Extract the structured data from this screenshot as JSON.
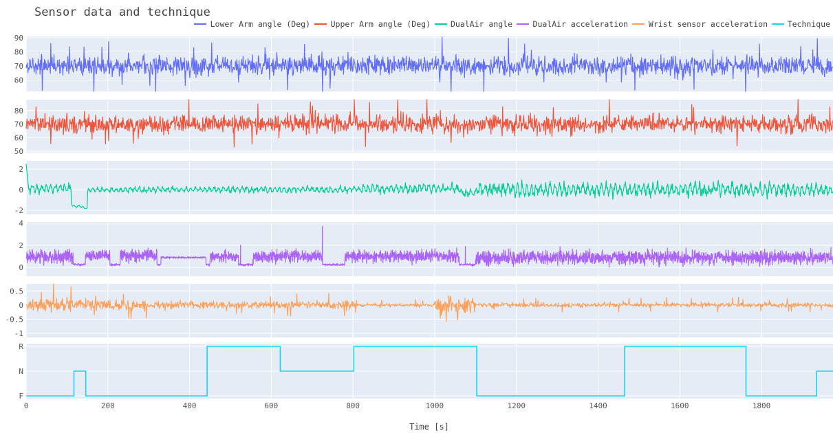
{
  "chart_data": {
    "type": "line",
    "title": "Sensor data and technique",
    "xlabel": "Time [s]",
    "xlim": [
      0,
      1975
    ],
    "x_ticks": [
      0,
      200,
      400,
      600,
      800,
      1000,
      1200,
      1400,
      1600,
      1800
    ],
    "legend_position": "top-right",
    "background": "#e5ecf6",
    "grid": true,
    "series": [
      {
        "name": "Lower Arm angle (Deg)",
        "color": "#636efa",
        "ylim": [
          52,
          91
        ],
        "y_ticks": [
          60,
          70,
          80,
          90
        ],
        "kind": "noise",
        "center": 70,
        "amplitude": 6,
        "spike": 18,
        "segments": [
          [
            0,
            1975,
            1.0
          ]
        ]
      },
      {
        "name": "Upper Arm angle (Deg)",
        "color": "#ef553b",
        "ylim": [
          49,
          88
        ],
        "y_ticks": [
          50,
          60,
          70,
          80
        ],
        "kind": "noise",
        "center": 70,
        "amplitude": 5.5,
        "spike": 17,
        "segments": [
          [
            0,
            1975,
            1.0
          ]
        ]
      },
      {
        "name": "DualAir angle",
        "color": "#00cc96",
        "ylim": [
          -2.4,
          2.8
        ],
        "y_ticks": [
          -2,
          0,
          2
        ],
        "kind": "wave",
        "levels": [
          [
            0,
            110,
            0.1,
            0.5
          ],
          [
            110,
            140,
            -1.6,
            0.1
          ],
          [
            140,
            150,
            -1.8,
            0.05
          ],
          [
            150,
            480,
            0.0,
            0.3
          ],
          [
            480,
            820,
            0.0,
            0.35
          ],
          [
            820,
            1060,
            0.1,
            0.5
          ],
          [
            1060,
            1100,
            -0.3,
            0.4
          ],
          [
            1100,
            1975,
            0.0,
            0.75
          ]
        ]
      },
      {
        "name": "DualAir acceleration",
        "color": "#ab63fa",
        "ylim": [
          -0.8,
          4.1
        ],
        "y_ticks": [
          0,
          2,
          4
        ],
        "kind": "bursts",
        "bursts": [
          [
            0,
            115,
            1.0,
            0.7
          ],
          [
            145,
            205,
            1.1,
            0.5
          ],
          [
            230,
            320,
            1.1,
            0.6
          ],
          [
            330,
            440,
            0.9,
            0.1
          ],
          [
            450,
            520,
            1.0,
            0.5
          ],
          [
            555,
            725,
            1.0,
            0.6
          ],
          [
            780,
            1060,
            1.0,
            0.6
          ],
          [
            1100,
            1975,
            0.9,
            0.7
          ]
        ],
        "spikes": [
          [
            725,
            3.7
          ],
          [
            525,
            2.0
          ],
          [
            1075,
            1.9
          ],
          [
            1970,
            1.8
          ]
        ]
      },
      {
        "name": "Wrist sensor acceleration",
        "color": "#ffa15a",
        "ylim": [
          -1.15,
          0.75
        ],
        "y_ticks": [
          -1,
          -0.5,
          0,
          0.5
        ],
        "kind": "noise",
        "center": 0,
        "amplitude": 0.12,
        "spike": 0.45,
        "segments": [
          [
            0,
            300,
            1.5
          ],
          [
            300,
            800,
            1.0
          ],
          [
            800,
            1000,
            0.5
          ],
          [
            1000,
            1100,
            2.0
          ],
          [
            1100,
            1975,
            0.55
          ]
        ]
      },
      {
        "name": "Technique",
        "color": "#19d3f3",
        "y_ticks_labels": [
          "F",
          "N",
          "R"
        ],
        "kind": "step",
        "steps": [
          [
            0,
            117,
            "F"
          ],
          [
            117,
            146,
            "N"
          ],
          [
            146,
            443,
            "F"
          ],
          [
            443,
            622,
            "R"
          ],
          [
            622,
            802,
            "N"
          ],
          [
            802,
            1103,
            "R"
          ],
          [
            1103,
            1465,
            "F"
          ],
          [
            1465,
            1762,
            "R"
          ],
          [
            1762,
            1935,
            "F"
          ],
          [
            1935,
            1975,
            "N"
          ]
        ]
      }
    ]
  }
}
